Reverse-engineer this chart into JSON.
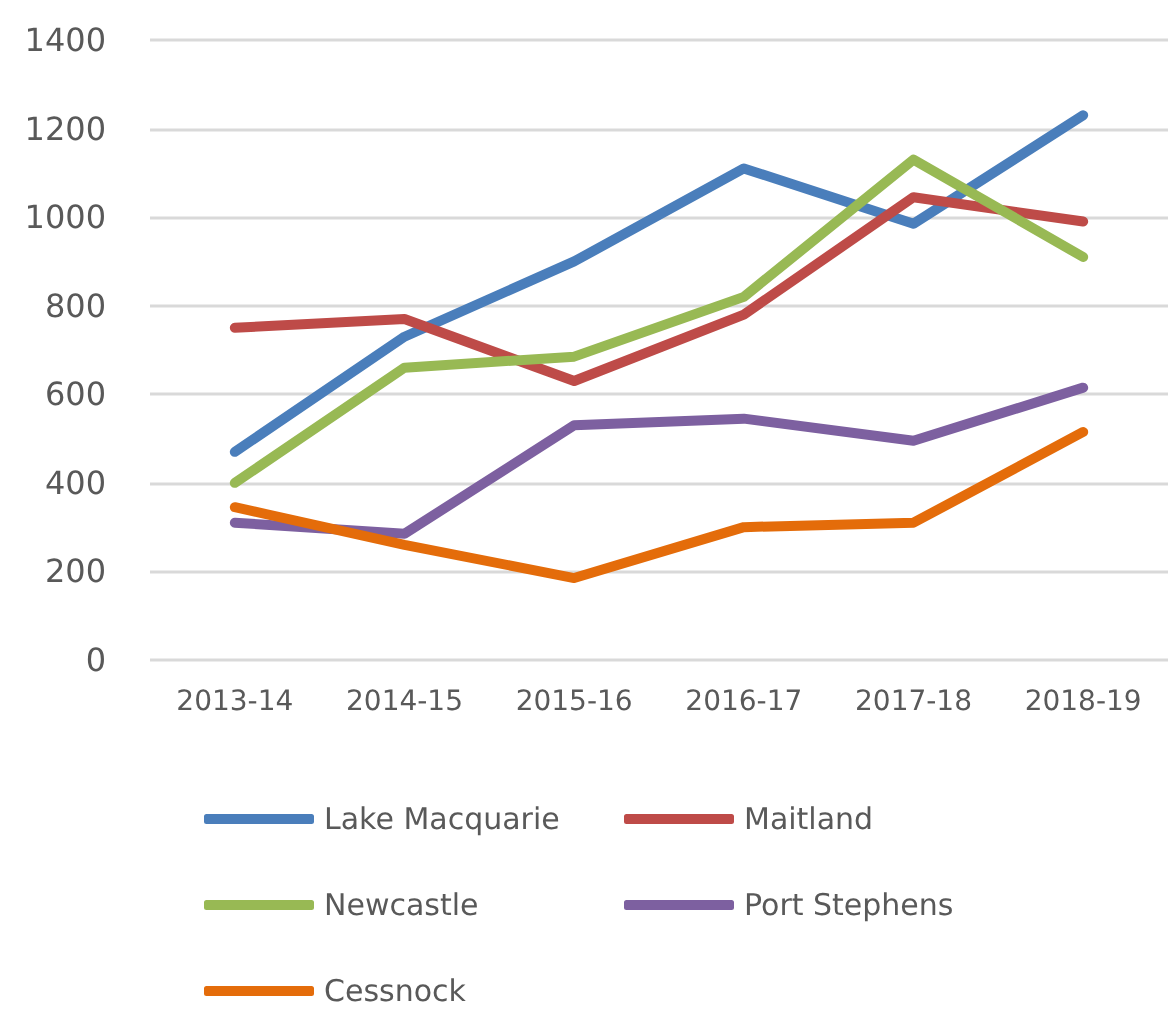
{
  "chart_data": {
    "type": "line",
    "categories": [
      "2013-14",
      "2014-15",
      "2015-16",
      "2016-17",
      "2017-18",
      "2018-19"
    ],
    "series": [
      {
        "name": "Lake Macquarie",
        "color": "#4a7ebb",
        "values": [
          470,
          730,
          900,
          1110,
          985,
          1230
        ]
      },
      {
        "name": "Maitland",
        "color": "#be4b48",
        "values": [
          750,
          770,
          630,
          780,
          1045,
          990
        ]
      },
      {
        "name": "Newcastle",
        "color": "#98b954",
        "values": [
          400,
          660,
          685,
          820,
          1130,
          910
        ]
      },
      {
        "name": "Port Stephens",
        "color": "#7d60a0",
        "values": [
          310,
          285,
          530,
          545,
          495,
          615
        ]
      },
      {
        "name": "Cessnock",
        "color": "#e46c0a",
        "values": [
          345,
          260,
          185,
          300,
          310,
          515
        ]
      }
    ],
    "ylim": [
      0,
      1400
    ],
    "yticks": [
      0,
      200,
      400,
      600,
      800,
      1000,
      1200,
      1400
    ],
    "grid": "y",
    "legend": "bottom",
    "marker": "none",
    "line_style": "solid"
  }
}
